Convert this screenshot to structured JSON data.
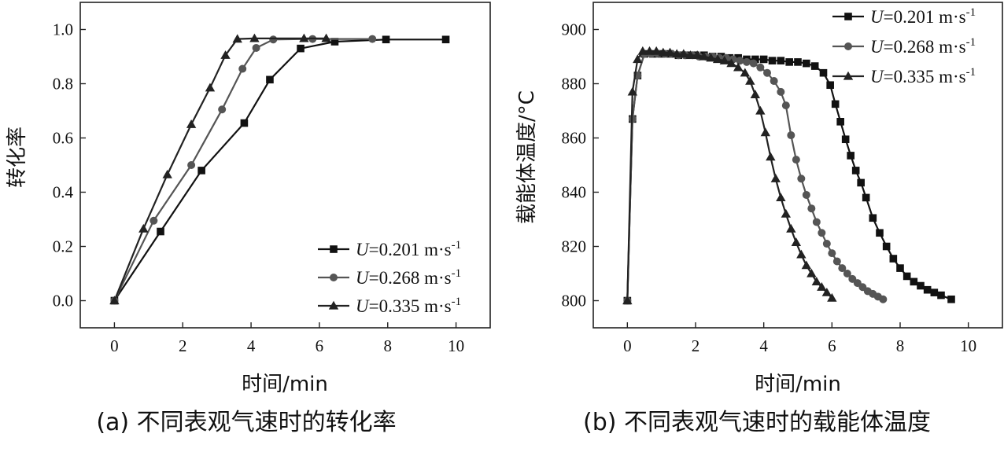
{
  "chart_data": [
    {
      "type": "line",
      "caption": "(a) 不同表观气速时的转化率",
      "xlabel": "时间/min",
      "ylabel": "转化率",
      "xlim": [
        -1,
        11
      ],
      "ylim": [
        -0.1,
        1.1
      ],
      "xticks": [
        0,
        2,
        4,
        6,
        8,
        10
      ],
      "yticks": [
        0.0,
        0.2,
        0.4,
        0.6,
        0.8,
        1.0
      ],
      "xtick_labels": [
        "0",
        "2",
        "4",
        "6",
        "8",
        "10"
      ],
      "ytick_labels": [
        "0.0",
        "0.2",
        "0.4",
        "0.6",
        "0.8",
        "1.0"
      ],
      "legend_position": "bottom-right",
      "series": [
        {
          "label_var": "U",
          "label_rest": "=0.201 m·s",
          "label_sup": "-1",
          "marker": "square",
          "color": "#111111",
          "x": [
            0,
            1.35,
            2.55,
            3.8,
            4.55,
            5.45,
            6.45,
            7.95,
            9.7
          ],
          "y": [
            0.0,
            0.255,
            0.48,
            0.655,
            0.815,
            0.93,
            0.955,
            0.963,
            0.963
          ]
        },
        {
          "label_var": "U",
          "label_rest": "=0.268 m·s",
          "label_sup": "-1",
          "marker": "circle",
          "color": "#555555",
          "x": [
            0,
            1.15,
            2.25,
            3.15,
            3.75,
            4.15,
            4.65,
            5.8,
            7.55
          ],
          "y": [
            0.0,
            0.295,
            0.5,
            0.705,
            0.855,
            0.932,
            0.963,
            0.965,
            0.965
          ]
        },
        {
          "label_var": "U",
          "label_rest": "=0.335 m·s",
          "label_sup": "-1",
          "marker": "triangle",
          "color": "#222222",
          "x": [
            0,
            0.85,
            1.55,
            2.25,
            2.8,
            3.25,
            3.6,
            4.1,
            5.55,
            6.2
          ],
          "y": [
            0.0,
            0.265,
            0.465,
            0.65,
            0.785,
            0.905,
            0.965,
            0.967,
            0.967,
            0.967
          ]
        }
      ]
    },
    {
      "type": "line",
      "caption": "(b) 不同表观气速时的载能体温度",
      "xlabel": "时间/min",
      "ylabel": "载能体温度/°C",
      "xlim": [
        -1,
        11
      ],
      "ylim": [
        790,
        910
      ],
      "xticks": [
        0,
        2,
        4,
        6,
        8,
        10
      ],
      "yticks": [
        800,
        820,
        840,
        860,
        880,
        900
      ],
      "xtick_labels": [
        "0",
        "2",
        "4",
        "6",
        "8",
        "10"
      ],
      "ytick_labels": [
        "800",
        "820",
        "840",
        "860",
        "880",
        "900"
      ],
      "legend_position": "top-right",
      "series": [
        {
          "label_var": "U",
          "label_rest": "=0.201 m·s",
          "label_sup": "-1",
          "marker": "square",
          "color": "#111111",
          "x": [
            0,
            0.15,
            0.3,
            0.5,
            0.75,
            1.0,
            1.25,
            1.5,
            1.75,
            2.0,
            2.25,
            2.5,
            2.75,
            3.0,
            3.25,
            3.5,
            3.75,
            4.0,
            4.25,
            4.5,
            4.75,
            5.0,
            5.25,
            5.5,
            5.75,
            5.95,
            6.1,
            6.25,
            6.4,
            6.55,
            6.7,
            6.85,
            7.0,
            7.2,
            7.4,
            7.6,
            7.8,
            8.0,
            8.2,
            8.4,
            8.6,
            8.8,
            9.0,
            9.2,
            9.5
          ],
          "y": [
            800,
            867,
            883,
            891,
            891,
            891,
            891,
            890.5,
            890.5,
            890.5,
            890.5,
            890,
            890,
            889.5,
            889.5,
            889,
            889,
            889,
            888.5,
            888.5,
            888,
            888,
            887.5,
            886.5,
            884,
            879.5,
            872.5,
            866,
            859.5,
            853.5,
            848,
            843.5,
            838,
            830.5,
            825,
            820,
            815.5,
            812,
            809,
            807,
            805.5,
            804,
            803,
            802,
            800.5
          ]
        },
        {
          "label_var": "U",
          "label_rest": "=0.268 m·s",
          "label_sup": "-1",
          "marker": "circle",
          "color": "#555555",
          "x": [
            0,
            0.15,
            0.3,
            0.5,
            0.7,
            0.9,
            1.1,
            1.3,
            1.5,
            1.7,
            1.9,
            2.1,
            2.3,
            2.5,
            2.7,
            2.9,
            3.1,
            3.3,
            3.5,
            3.7,
            3.9,
            4.1,
            4.3,
            4.5,
            4.65,
            4.8,
            4.95,
            5.1,
            5.25,
            5.4,
            5.55,
            5.7,
            5.85,
            6.0,
            6.15,
            6.3,
            6.45,
            6.6,
            6.75,
            6.9,
            7.05,
            7.2,
            7.35,
            7.5
          ],
          "y": [
            800,
            867,
            883,
            891,
            891,
            891,
            891,
            891,
            890.5,
            890.5,
            890.5,
            890,
            890,
            890,
            889.5,
            889.5,
            889,
            888.5,
            888,
            887.5,
            886,
            884,
            881,
            877,
            872,
            861,
            852,
            845,
            839,
            834,
            829,
            825,
            821,
            817.5,
            814.5,
            812,
            810,
            808,
            806.5,
            805,
            803.5,
            802.5,
            801.5,
            800.5
          ]
        },
        {
          "label_var": "U",
          "label_rest": "=0.335 m·s",
          "label_sup": "-1",
          "marker": "triangle",
          "color": "#222222",
          "x": [
            0,
            0.15,
            0.3,
            0.45,
            0.65,
            0.85,
            1.05,
            1.25,
            1.45,
            1.65,
            1.85,
            2.05,
            2.25,
            2.45,
            2.65,
            2.85,
            3.05,
            3.25,
            3.45,
            3.6,
            3.75,
            3.9,
            4.05,
            4.2,
            4.35,
            4.5,
            4.65,
            4.8,
            4.95,
            5.1,
            5.25,
            5.4,
            5.55,
            5.7,
            5.85,
            6.0
          ],
          "y": [
            800,
            877,
            889,
            892,
            892,
            892,
            891.5,
            891.5,
            891,
            891,
            890.5,
            890.5,
            890,
            889.5,
            889,
            888.5,
            887.5,
            886,
            884,
            881,
            876,
            870,
            862,
            853,
            845,
            838,
            832,
            826.5,
            821.5,
            817,
            813,
            810,
            807,
            805,
            803,
            801
          ]
        }
      ]
    }
  ]
}
